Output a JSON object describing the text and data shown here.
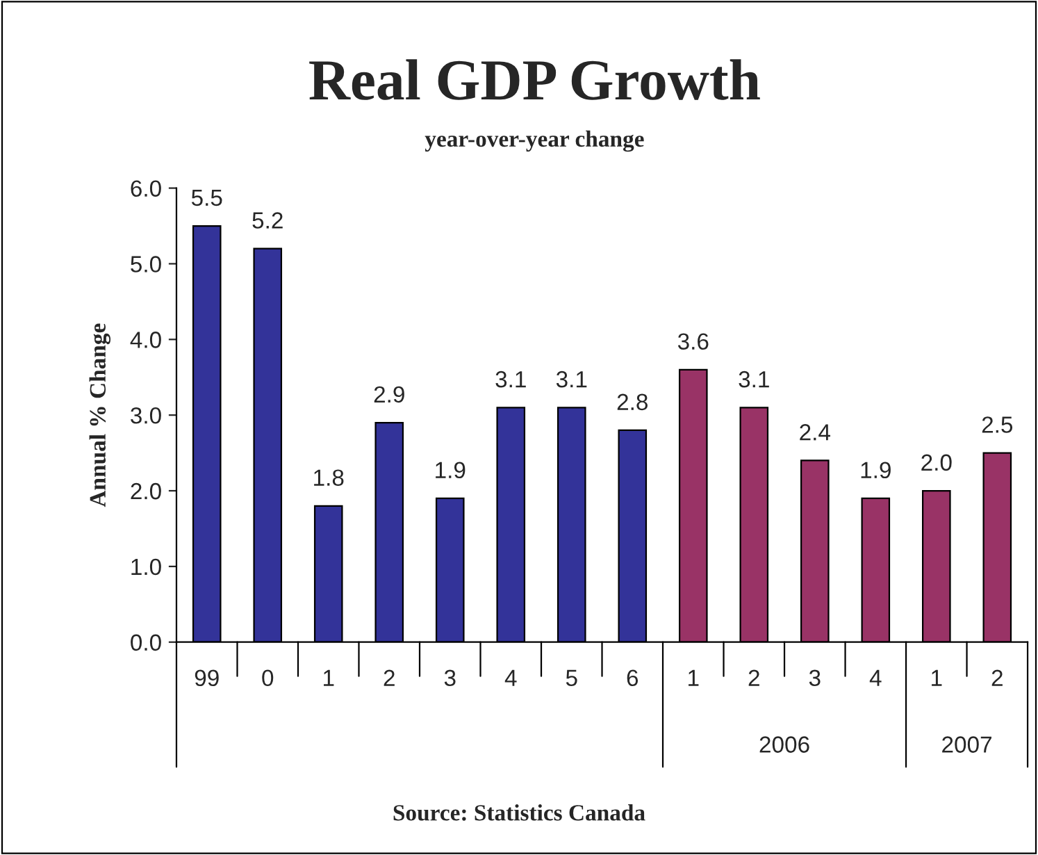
{
  "chart_data": {
    "type": "bar",
    "title": "Real GDP Growth",
    "subtitle": "year-over-year change",
    "ylabel": "Annual % Change",
    "categories": [
      "99",
      "0",
      "1",
      "2",
      "3",
      "4",
      "5",
      "6",
      "1",
      "2",
      "3",
      "4",
      "1",
      "2"
    ],
    "values": [
      5.5,
      5.2,
      1.8,
      2.9,
      1.9,
      3.1,
      3.1,
      2.8,
      3.6,
      3.1,
      2.4,
      1.9,
      2.0,
      2.5
    ],
    "colors": [
      "#333399",
      "#333399",
      "#333399",
      "#333399",
      "#333399",
      "#333399",
      "#333399",
      "#333399",
      "#993366",
      "#993366",
      "#993366",
      "#993366",
      "#993366",
      "#993366"
    ],
    "ylim": [
      0,
      6
    ],
    "yticks": [
      {
        "value": 0,
        "label": "0.0"
      },
      {
        "value": 1,
        "label": "1.0"
      },
      {
        "value": 2,
        "label": "2.0"
      },
      {
        "value": 3,
        "label": "3.0"
      },
      {
        "value": 4,
        "label": "4.0"
      },
      {
        "value": 5,
        "label": "5.0"
      },
      {
        "value": 6,
        "label": "6.0"
      }
    ],
    "value_labels": [
      "5.5",
      "5.2",
      "1.8",
      "2.9",
      "1.9",
      "3.1",
      "3.1",
      "2.8",
      "3.6",
      "3.1",
      "2.4",
      "1.9",
      "2.0",
      "2.5"
    ],
    "grid": false,
    "legend": false,
    "annotations": [
      "2006",
      "2007",
      "Source: Statistics Canada"
    ]
  }
}
